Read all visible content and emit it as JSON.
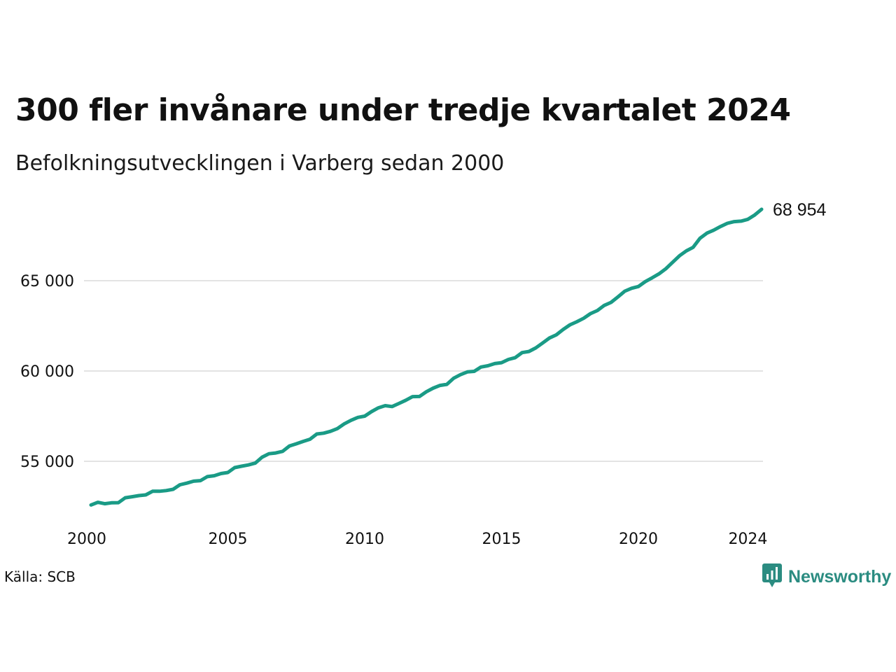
{
  "header": {
    "title": "300 fler invånare under tredje kvartalet 2024",
    "subtitle": "Befolkningsutvecklingen i Varberg sedan 2000"
  },
  "footer": {
    "source": "Källa: SCB",
    "brand": "Newsworthy"
  },
  "colors": {
    "line": "#1a9b86",
    "grid": "#e3e3e3",
    "brand": "#2b8c81"
  },
  "chart_data": {
    "type": "line",
    "title": "300 fler invånare under tredje kvartalet 2024",
    "subtitle": "Befolkningsutvecklingen i Varberg sedan 2000",
    "xlabel": "",
    "ylabel": "",
    "xlim": [
      2000,
      2024.75
    ],
    "ylim": [
      51800,
      70000
    ],
    "x_ticks": [
      2000,
      2005,
      2010,
      2015,
      2020,
      2024
    ],
    "x_tick_labels": [
      "2000",
      "2005",
      "2010",
      "2015",
      "2020",
      "2024"
    ],
    "y_ticks": [
      55000,
      60000,
      65000
    ],
    "y_tick_labels": [
      "55 000",
      "60 000",
      "65 000"
    ],
    "grid": "horizontal",
    "legend": "none",
    "end_label": "68 954",
    "series": [
      {
        "x": [
          2000.0,
          2000.25,
          2000.5,
          2000.75,
          2001.0,
          2001.25,
          2001.5,
          2001.75,
          2002.0,
          2002.25,
          2002.5,
          2002.75,
          2003.0,
          2003.25,
          2003.5,
          2003.75,
          2004.0,
          2004.25,
          2004.5,
          2004.75,
          2005.0,
          2005.25,
          2005.5,
          2005.75,
          2006.0,
          2006.25,
          2006.5,
          2006.75,
          2007.0,
          2007.25,
          2007.5,
          2007.75,
          2008.0,
          2008.25,
          2008.5,
          2008.75,
          2009.0,
          2009.25,
          2009.5,
          2009.75,
          2010.0,
          2010.25,
          2010.5,
          2010.75,
          2011.0,
          2011.25,
          2011.5,
          2011.75,
          2012.0,
          2012.25,
          2012.5,
          2012.75,
          2013.0,
          2013.25,
          2013.5,
          2013.75,
          2014.0,
          2014.25,
          2014.5,
          2014.75,
          2015.0,
          2015.25,
          2015.5,
          2015.75,
          2016.0,
          2016.25,
          2016.5,
          2016.75,
          2017.0,
          2017.25,
          2017.5,
          2017.75,
          2018.0,
          2018.25,
          2018.5,
          2018.75,
          2019.0,
          2019.25,
          2019.5,
          2019.75,
          2020.0,
          2020.25,
          2020.5,
          2020.75,
          2021.0,
          2021.25,
          2021.5,
          2021.75,
          2022.0,
          2022.25,
          2022.5,
          2022.75,
          2023.0,
          2023.25,
          2023.5,
          2023.75,
          2024.0,
          2024.25,
          2024.5
        ],
        "y": [
          52580,
          52730,
          52650,
          52700,
          52710,
          52980,
          53040,
          53100,
          53140,
          53340,
          53340,
          53380,
          53450,
          53700,
          53790,
          53900,
          53930,
          54150,
          54200,
          54320,
          54380,
          54650,
          54730,
          54800,
          54900,
          55230,
          55420,
          55460,
          55550,
          55850,
          55970,
          56100,
          56220,
          56510,
          56560,
          56660,
          56810,
          57070,
          57270,
          57430,
          57500,
          57750,
          57960,
          58080,
          58030,
          58200,
          58380,
          58580,
          58590,
          58850,
          59050,
          59200,
          59260,
          59600,
          59800,
          59950,
          59980,
          60220,
          60290,
          60410,
          60460,
          60640,
          60740,
          61020,
          61080,
          61280,
          61550,
          61830,
          62000,
          62300,
          62560,
          62730,
          62920,
          63180,
          63350,
          63630,
          63800,
          64100,
          64420,
          64580,
          64680,
          64950,
          65160,
          65380,
          65660,
          66020,
          66380,
          66650,
          66850,
          67350,
          67630,
          67800,
          68000,
          68180,
          68270,
          68300,
          68400,
          68640,
          68954
        ]
      }
    ]
  }
}
